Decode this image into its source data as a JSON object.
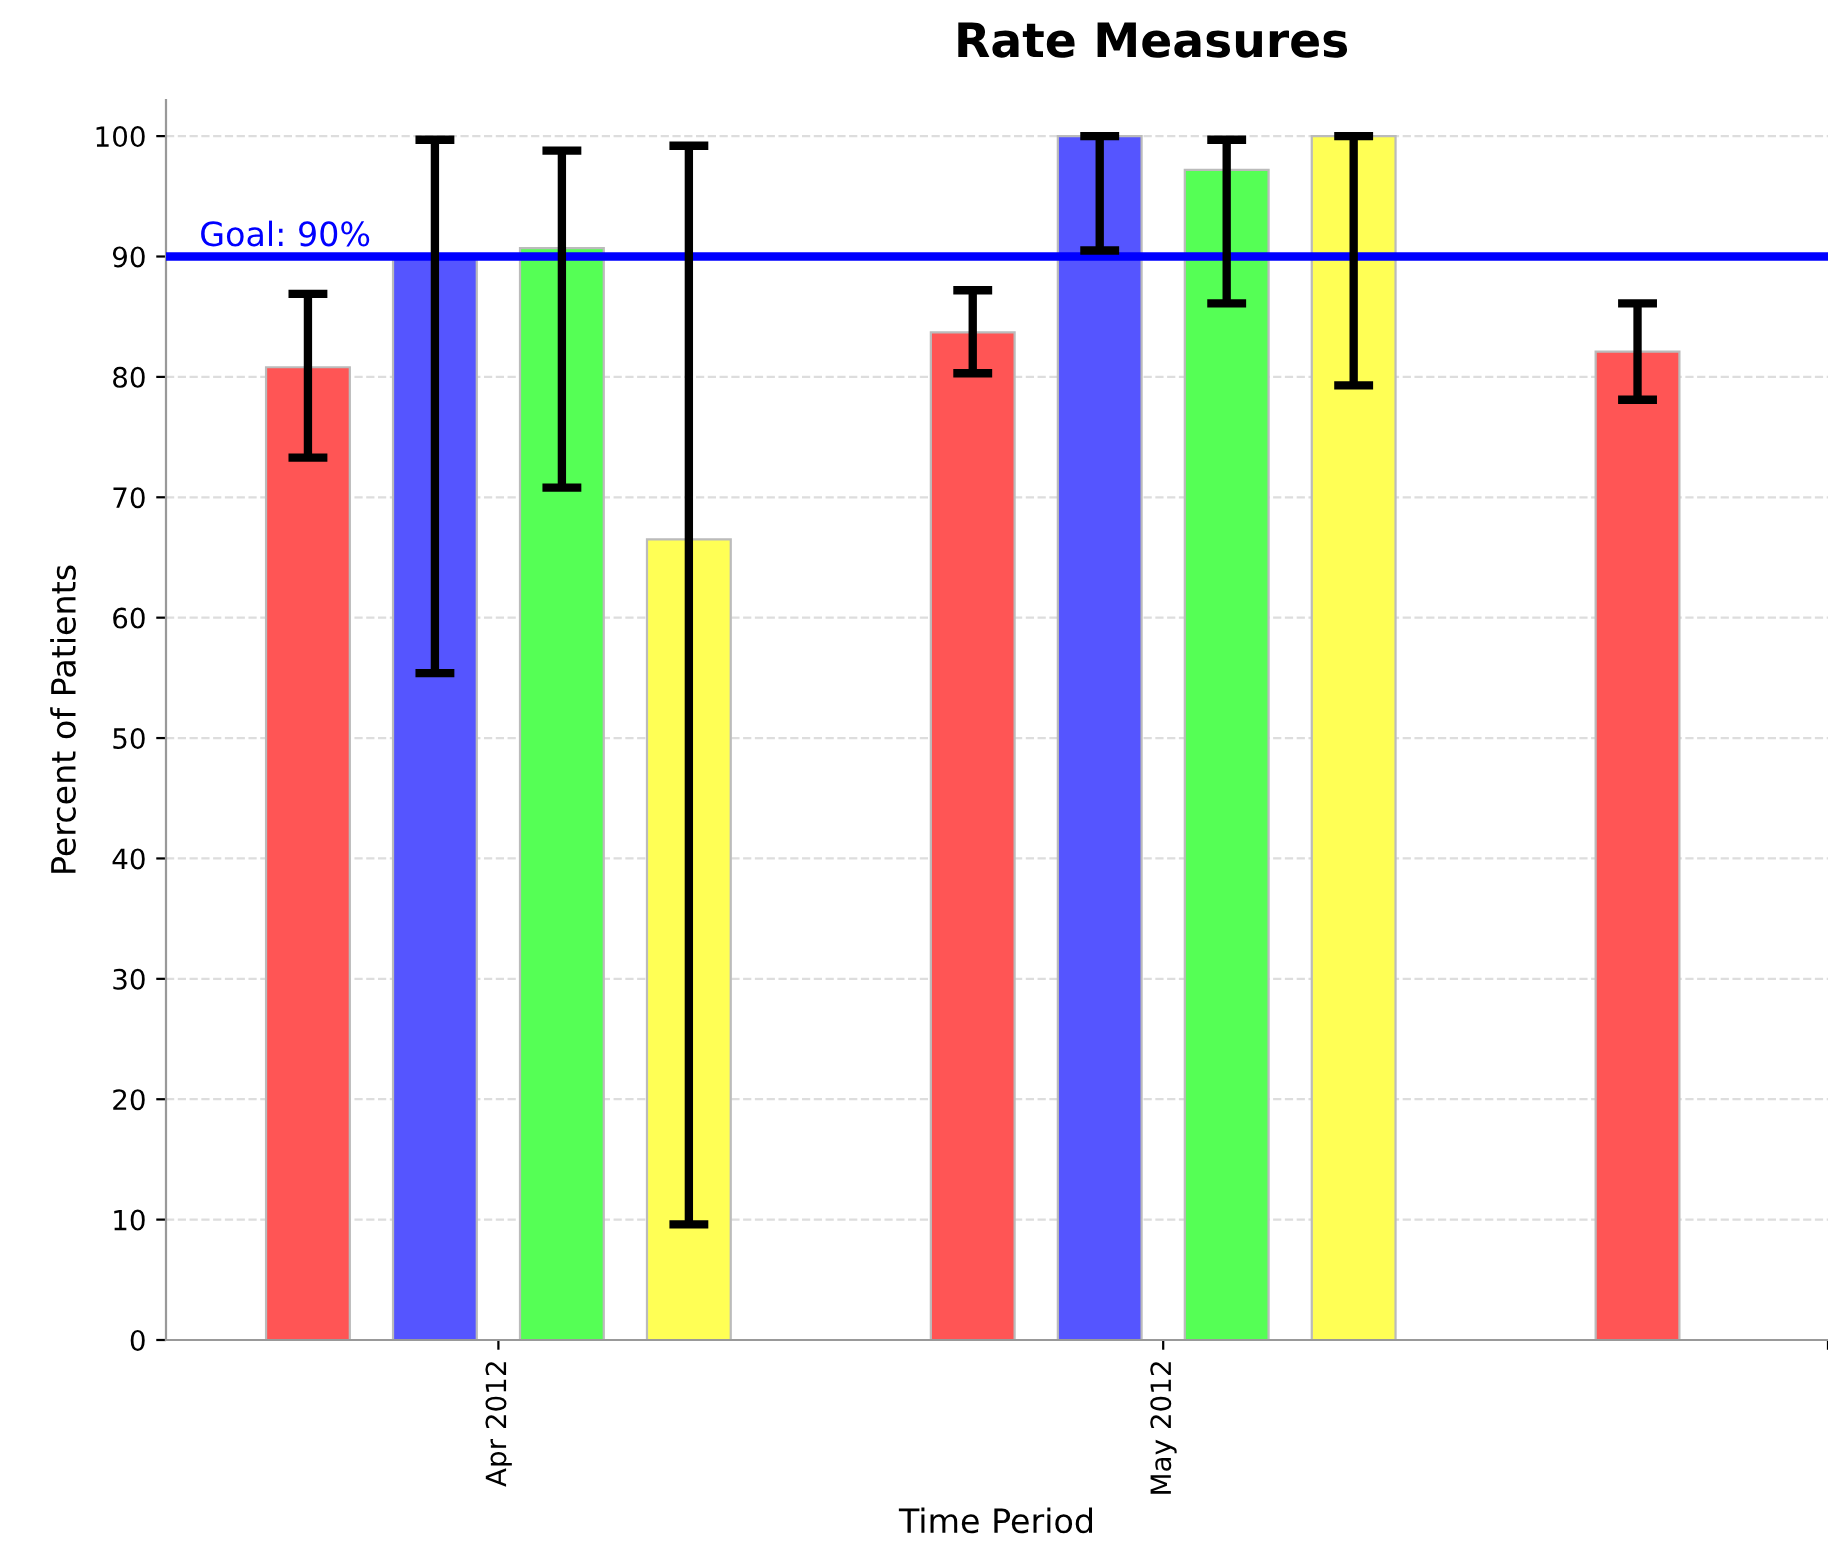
{
  "chart_data": {
    "type": "bar",
    "title": "Rate Measures",
    "xlabel": "Time Period",
    "ylabel": "Percent of Patients",
    "categories": [
      "Apr 2012",
      "May 2012",
      null
    ],
    "series": [
      {
        "color": "#ff5555",
        "values": [
          80.8,
          83.7,
          82.1
        ],
        "errors": [
          [
            73.3,
            86.9
          ],
          [
            80.3,
            87.2
          ],
          [
            78.1,
            86.1
          ]
        ]
      },
      {
        "color": "#5555ff",
        "values": [
          90,
          100,
          null
        ],
        "errors": [
          [
            55.4,
            99.7
          ],
          [
            90.5,
            100
          ],
          null
        ]
      },
      {
        "color": "#55ff55",
        "values": [
          90.7,
          97.2,
          null
        ],
        "errors": [
          [
            70.8,
            98.8
          ],
          [
            86.1,
            99.7
          ],
          null
        ]
      },
      {
        "color": "#ffff55",
        "values": [
          66.5,
          100,
          null
        ],
        "errors": [
          [
            9.6,
            99.2
          ],
          [
            79.3,
            100
          ],
          null
        ]
      }
    ],
    "ylim": [
      0,
      103
    ],
    "yticks": [
      0,
      10,
      20,
      30,
      40,
      50,
      60,
      70,
      80,
      90,
      100
    ],
    "grid": "y",
    "ref_lines": [
      {
        "axis": "y",
        "value": 90,
        "label": "Goal: 90%",
        "color": "#0000ff"
      }
    ]
  }
}
